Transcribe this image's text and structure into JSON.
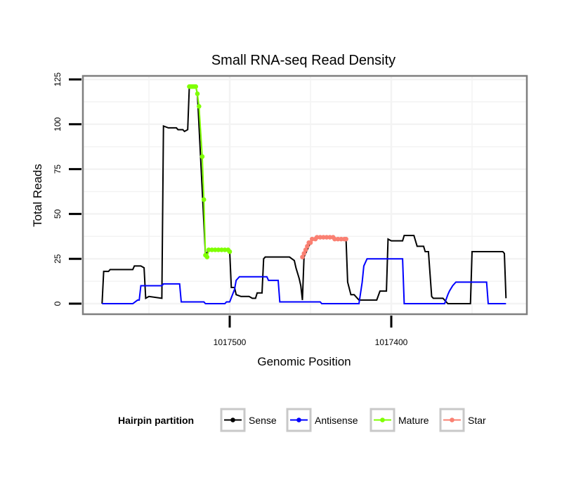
{
  "chart_data": {
    "type": "line",
    "title": "Small RNA-seq Read Density",
    "xlabel": "Genomic Position",
    "ylabel": "Total Reads",
    "xlim": [
      1017591,
      1017316
    ],
    "x_reversed": true,
    "ylim": [
      -6,
      127
    ],
    "x_ticks": [
      1017500,
      1017400
    ],
    "x_tick_labels": [
      "1017500",
      "1017400"
    ],
    "y_ticks": [
      0,
      25,
      50,
      75,
      100,
      125
    ],
    "y_tick_labels": [
      "0",
      "25",
      "50",
      "75",
      "100",
      "125"
    ],
    "grid": true,
    "legend": {
      "title": "Hairpin partition",
      "placement": "bottom",
      "entries": [
        "Sense",
        "Antisense",
        "Mature",
        "Star"
      ]
    },
    "colors": {
      "Sense": "#000000",
      "Antisense": "#0000ff",
      "Mature": "#7fff00",
      "Star": "#fa8072"
    },
    "series": [
      {
        "name": "Sense",
        "style": "line",
        "points": [
          [
            1017579,
            0
          ],
          [
            1017578,
            18
          ],
          [
            1017575,
            18
          ],
          [
            1017574,
            19
          ],
          [
            1017560,
            19
          ],
          [
            1017559,
            21
          ],
          [
            1017555,
            21
          ],
          [
            1017553,
            20
          ],
          [
            1017552,
            3
          ],
          [
            1017550,
            4
          ],
          [
            1017542,
            3
          ],
          [
            1017541,
            99
          ],
          [
            1017538,
            98
          ],
          [
            1017533,
            98
          ],
          [
            1017532,
            97
          ],
          [
            1017529,
            97
          ],
          [
            1017528,
            96
          ],
          [
            1017526,
            97
          ],
          [
            1017525,
            121
          ],
          [
            1017521,
            121
          ],
          [
            1017520,
            117
          ],
          [
            1017515,
            27
          ],
          [
            1017513,
            30
          ],
          [
            1017501,
            30
          ],
          [
            1017500,
            29
          ],
          [
            1017499,
            9
          ],
          [
            1017497,
            9
          ],
          [
            1017496,
            5
          ],
          [
            1017493,
            4
          ],
          [
            1017488,
            4
          ],
          [
            1017486,
            3
          ],
          [
            1017484,
            3
          ],
          [
            1017483,
            6
          ],
          [
            1017480,
            6
          ],
          [
            1017479,
            25
          ],
          [
            1017478,
            26
          ],
          [
            1017463,
            26
          ],
          [
            1017460,
            24
          ],
          [
            1017459,
            20
          ],
          [
            1017457,
            14
          ],
          [
            1017456,
            10
          ],
          [
            1017455,
            2
          ],
          [
            1017454,
            26
          ],
          [
            1017449,
            36
          ],
          [
            1017446,
            37
          ],
          [
            1017436,
            37
          ],
          [
            1017435,
            36
          ],
          [
            1017428,
            36
          ],
          [
            1017427,
            12
          ],
          [
            1017425,
            5
          ],
          [
            1017423,
            5
          ],
          [
            1017421,
            3
          ],
          [
            1017420,
            2
          ],
          [
            1017409,
            2
          ],
          [
            1017407,
            7
          ],
          [
            1017403,
            7
          ],
          [
            1017402,
            36
          ],
          [
            1017400,
            35
          ],
          [
            1017393,
            35
          ],
          [
            1017392,
            38
          ],
          [
            1017386,
            38
          ],
          [
            1017384,
            32
          ],
          [
            1017380,
            32
          ],
          [
            1017379,
            29
          ],
          [
            1017377,
            29
          ],
          [
            1017375,
            4
          ],
          [
            1017374,
            3
          ],
          [
            1017368,
            3
          ],
          [
            1017365,
            0
          ],
          [
            1017351,
            0
          ],
          [
            1017350,
            29
          ],
          [
            1017331,
            29
          ],
          [
            1017330,
            28
          ],
          [
            1017329,
            3
          ]
        ]
      },
      {
        "name": "Antisense",
        "style": "line",
        "points": [
          [
            1017579,
            0
          ],
          [
            1017560,
            0
          ],
          [
            1017557,
            2
          ],
          [
            1017556,
            2
          ],
          [
            1017555,
            10
          ],
          [
            1017542,
            10
          ],
          [
            1017541,
            11
          ],
          [
            1017531,
            11
          ],
          [
            1017530,
            1
          ],
          [
            1017516,
            1
          ],
          [
            1017515,
            0
          ],
          [
            1017503,
            0
          ],
          [
            1017502,
            1
          ],
          [
            1017500,
            1
          ],
          [
            1017497,
            8
          ],
          [
            1017496,
            13
          ],
          [
            1017494,
            15
          ],
          [
            1017477,
            15
          ],
          [
            1017476,
            13
          ],
          [
            1017470,
            13
          ],
          [
            1017469,
            1
          ],
          [
            1017444,
            1
          ],
          [
            1017443,
            0
          ],
          [
            1017420,
            0
          ],
          [
            1017418,
            12
          ],
          [
            1017417,
            21
          ],
          [
            1017415,
            25
          ],
          [
            1017393,
            25
          ],
          [
            1017392,
            0
          ],
          [
            1017367,
            0
          ],
          [
            1017365,
            5
          ],
          [
            1017364,
            7
          ],
          [
            1017362,
            10
          ],
          [
            1017360,
            12
          ],
          [
            1017341,
            12
          ],
          [
            1017340,
            0
          ],
          [
            1017329,
            0
          ]
        ]
      },
      {
        "name": "Mature",
        "style": "points",
        "points": [
          [
            1017525,
            121
          ],
          [
            1017524,
            121
          ],
          [
            1017523,
            121
          ],
          [
            1017522,
            121
          ],
          [
            1017521,
            121
          ],
          [
            1017520,
            117
          ],
          [
            1017519,
            110
          ],
          [
            1017517,
            82
          ],
          [
            1017516,
            58
          ],
          [
            1017515,
            27
          ],
          [
            1017514,
            26
          ],
          [
            1017513,
            30
          ],
          [
            1017511,
            30
          ],
          [
            1017509,
            30
          ],
          [
            1017507,
            30
          ],
          [
            1017505,
            30
          ],
          [
            1017503,
            30
          ],
          [
            1017501,
            30
          ],
          [
            1017500,
            29
          ]
        ]
      },
      {
        "name": "Star",
        "style": "points",
        "points": [
          [
            1017455,
            26
          ],
          [
            1017454,
            28
          ],
          [
            1017453,
            30
          ],
          [
            1017452,
            32
          ],
          [
            1017451,
            34
          ],
          [
            1017450,
            34
          ],
          [
            1017449,
            36
          ],
          [
            1017447,
            36
          ],
          [
            1017446,
            37
          ],
          [
            1017444,
            37
          ],
          [
            1017442,
            37
          ],
          [
            1017440,
            37
          ],
          [
            1017438,
            37
          ],
          [
            1017436,
            37
          ],
          [
            1017435,
            36
          ],
          [
            1017433,
            36
          ],
          [
            1017431,
            36
          ],
          [
            1017429,
            36
          ],
          [
            1017428,
            36
          ]
        ]
      }
    ]
  }
}
